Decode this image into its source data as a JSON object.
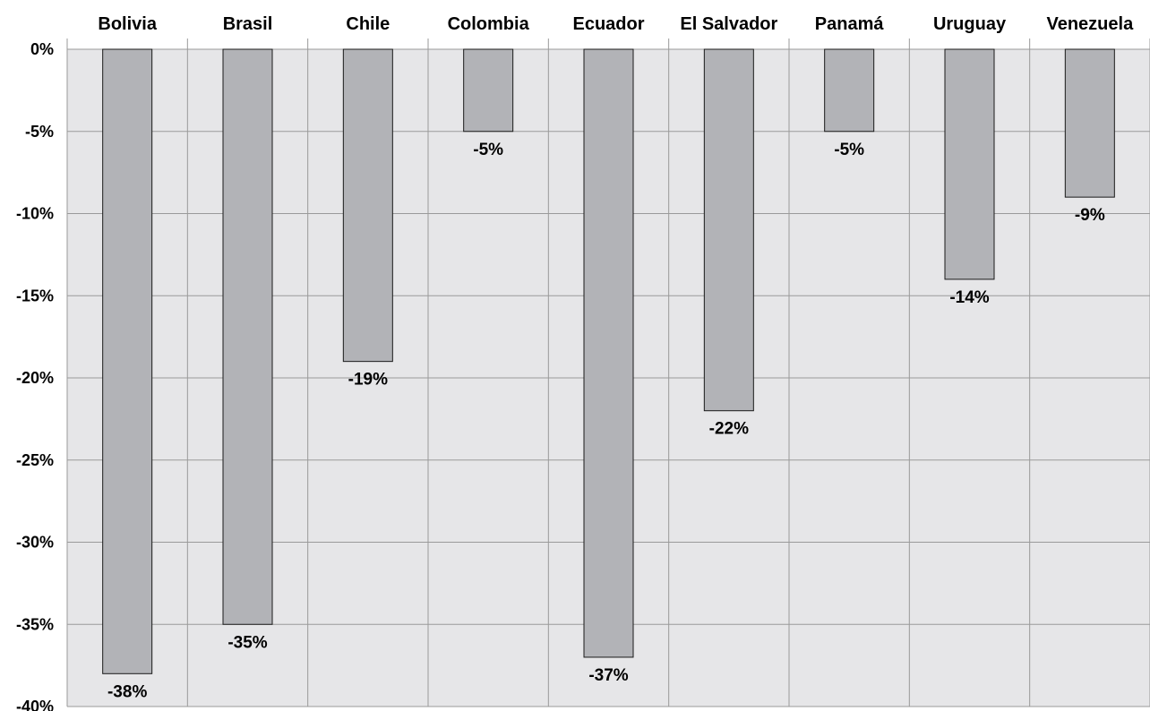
{
  "chart_data": {
    "type": "bar",
    "categories": [
      "Bolivia",
      "Brasil",
      "Chile",
      "Colombia",
      "Ecuador",
      "El Salvador",
      "Panamá",
      "Uruguay",
      "Venezuela"
    ],
    "values": [
      -38,
      -35,
      -19,
      -5,
      -37,
      -22,
      -5,
      -14,
      -9
    ],
    "data_labels": [
      "-38%",
      "-35%",
      "-19%",
      "-5%",
      "-37%",
      "-22%",
      "-5%",
      "-14%",
      "-9%"
    ],
    "y_ticks": [
      0,
      -5,
      -10,
      -15,
      -20,
      -25,
      -30,
      -35,
      -40
    ],
    "y_tick_labels": [
      "0%",
      "-5%",
      "-10%",
      "-15%",
      "-20%",
      "-25%",
      "-30%",
      "-35%",
      "-40%"
    ],
    "ylim": [
      -40,
      0
    ],
    "title": "",
    "xlabel": "",
    "ylabel": "",
    "category_axis_position": "top",
    "grid": true,
    "colors": {
      "plot_bg": "#e6e6e8",
      "grid": "#9a9a9a",
      "bar_fill": "#b2b3b7",
      "bar_stroke": "#1a1a1a"
    }
  }
}
